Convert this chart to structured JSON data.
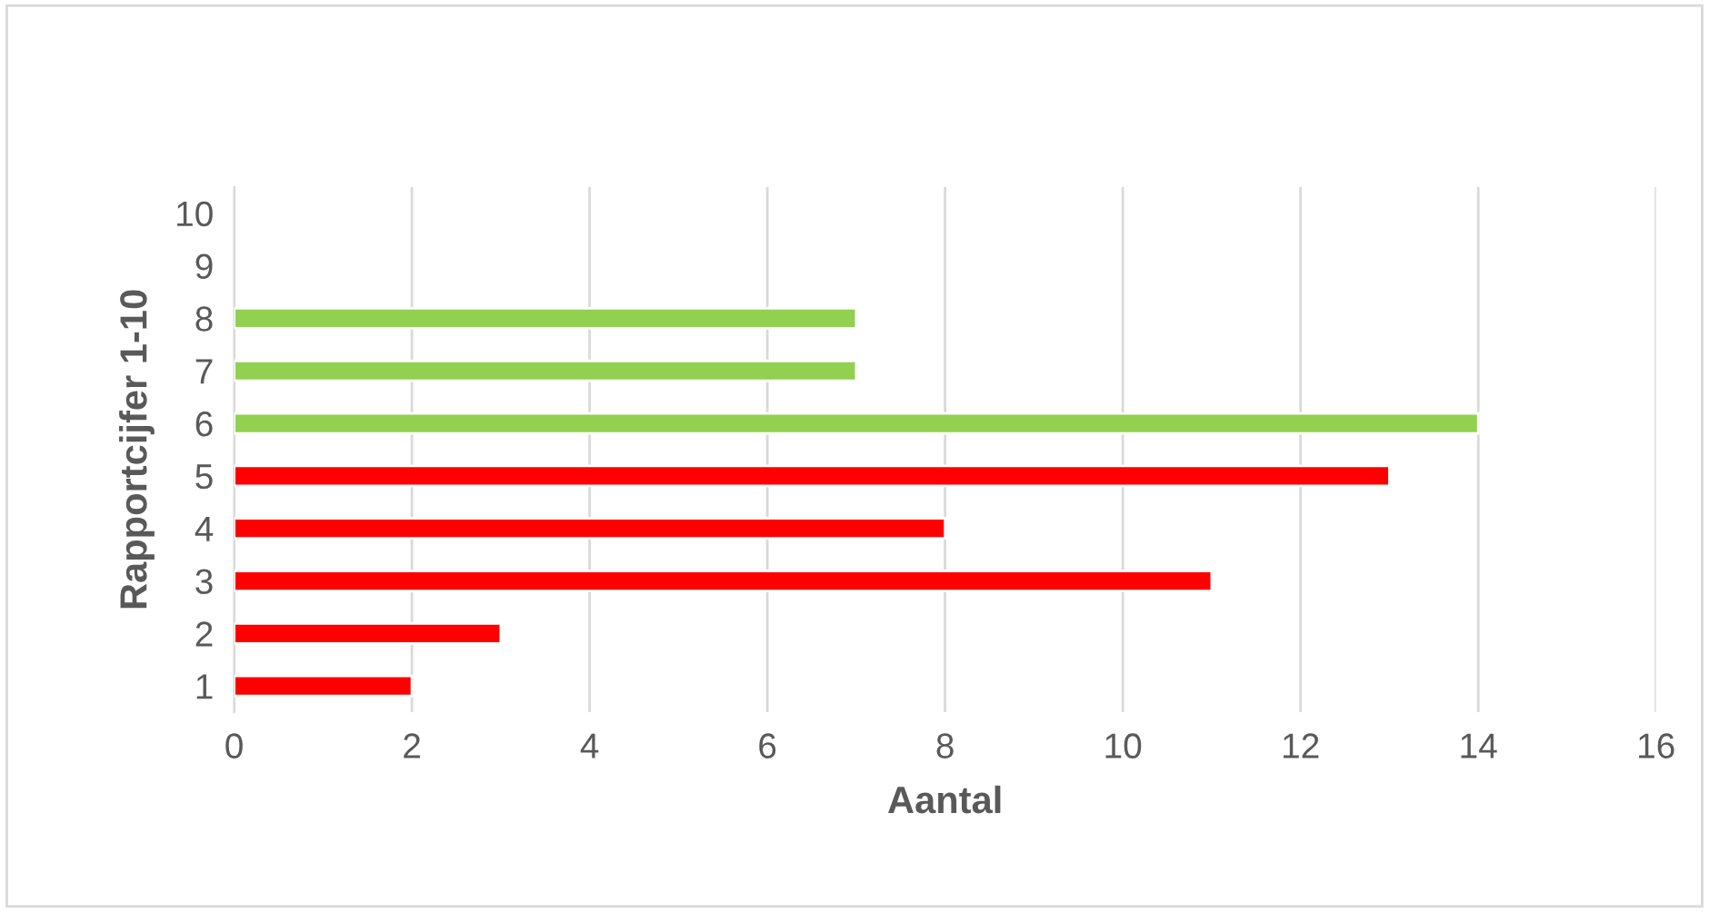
{
  "chart_data": {
    "type": "bar",
    "orientation": "horizontal",
    "xlabel": "Aantal",
    "ylabel": "Rapportcijfer 1-10",
    "categories": [
      "10",
      "9",
      "8",
      "7",
      "6",
      "5",
      "4",
      "3",
      "2",
      "1"
    ],
    "values": [
      null,
      null,
      7,
      7,
      14,
      13,
      8,
      11,
      3,
      2
    ],
    "colors": [
      null,
      null,
      "#92d050",
      "#92d050",
      "#92d050",
      "#ff0000",
      "#ff0000",
      "#ff0000",
      "#ff0000",
      "#ff0000"
    ],
    "xlim": [
      0,
      16
    ],
    "xticks": [
      0,
      2,
      4,
      6,
      8,
      10,
      12,
      14,
      16
    ],
    "grid": "x"
  }
}
